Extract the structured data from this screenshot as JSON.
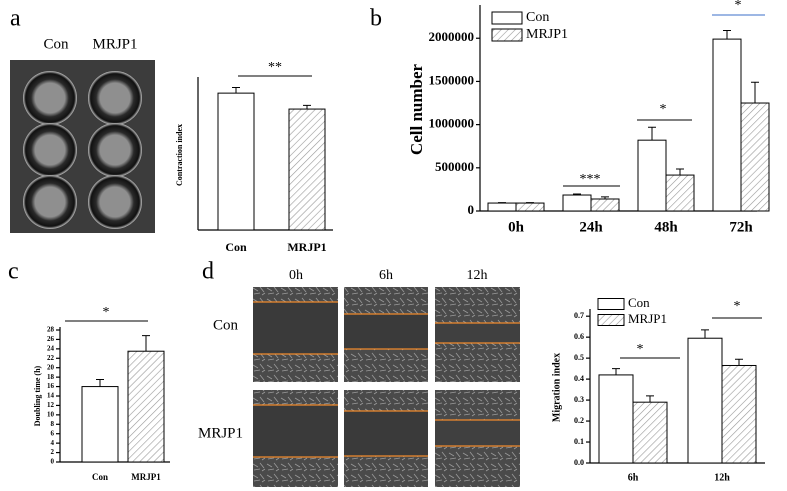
{
  "panel_labels": [
    "a",
    "b",
    "c",
    "d"
  ],
  "plate_labels": [
    "Con",
    "MRJP1"
  ],
  "migration_image": {
    "columns": [
      "0h",
      "6h",
      "12h"
    ],
    "rows": [
      "Con",
      "MRJP1"
    ]
  },
  "chart_data": [
    {
      "type": "bar",
      "y_label": "Contraction index",
      "categories": [
        "Con",
        "MRJP1"
      ],
      "values": [
        0.73,
        0.645
      ],
      "errors": [
        0.03,
        0.02
      ],
      "colors": [
        "#ffffff",
        "#ffffff"
      ],
      "hatched": [
        false,
        true
      ],
      "ylim": [
        0,
        0.8
      ],
      "annotations": [
        "**"
      ]
    },
    {
      "type": "bar",
      "y_label": "Cell number",
      "categories": [
        "0h",
        "24h",
        "48h",
        "72h"
      ],
      "series": [
        {
          "name": "Con",
          "color": "#ffffff",
          "hatched": false,
          "values": [
            92000,
            185000,
            820000,
            1990000
          ],
          "errors": [
            5000,
            12000,
            150000,
            100000
          ]
        },
        {
          "name": "MRJP1",
          "color": "#ffffff",
          "hatched": true,
          "values": [
            92000,
            139000,
            416000,
            1250000
          ],
          "errors": [
            5000,
            25000,
            70000,
            240000
          ]
        }
      ],
      "ylim": [
        0,
        2350000
      ],
      "yticks": [
        0,
        500000,
        1000000,
        1500000,
        2000000
      ],
      "annotations": [
        "***",
        "*",
        "*"
      ]
    },
    {
      "type": "bar",
      "y_label": "Doubling time (h)",
      "categories": [
        "Con",
        "MRJP1"
      ],
      "values": [
        16,
        23.5
      ],
      "errors": [
        1.5,
        3.3
      ],
      "colors": [
        "#ffffff",
        "#ffffff"
      ],
      "hatched": [
        false,
        true
      ],
      "ylim": [
        0,
        28
      ],
      "yticks": [
        0,
        2,
        4,
        6,
        8,
        10,
        12,
        14,
        16,
        18,
        20,
        22,
        24,
        26,
        28
      ],
      "annotations": [
        "*"
      ]
    },
    {
      "type": "bar",
      "y_label": "Migration index",
      "categories": [
        "6h",
        "12h"
      ],
      "series": [
        {
          "name": "Con",
          "color": "#ffffff",
          "hatched": false,
          "values": [
            0.42,
            0.595
          ],
          "errors": [
            0.03,
            0.04
          ]
        },
        {
          "name": "MRJP1",
          "color": "#ffffff",
          "hatched": true,
          "values": [
            0.29,
            0.465
          ],
          "errors": [
            0.03,
            0.03
          ]
        }
      ],
      "ylim": [
        0,
        0.72
      ],
      "yticks": [
        {
          "value": 0,
          "label": "0.0"
        },
        0.1,
        0.2,
        0.3,
        0.4,
        0.5,
        0.6,
        0.7
      ],
      "annotations": [
        "*",
        "*"
      ]
    }
  ]
}
